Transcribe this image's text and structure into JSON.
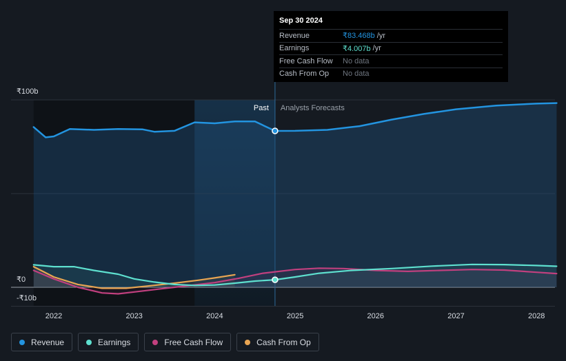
{
  "chart_data": {
    "type": "line",
    "y_tick_labels": [
      "₹100b",
      "₹0",
      "-₹10b"
    ],
    "y_ticks": [
      100,
      0,
      -10
    ],
    "ylim": [
      -10,
      100
    ],
    "x_range": [
      2021.5,
      2028.3
    ],
    "x_tick_labels": [
      "2022",
      "2023",
      "2024",
      "2025",
      "2026",
      "2027",
      "2028"
    ],
    "x_ticks": [
      2022,
      2023,
      2024,
      2025,
      2026,
      2027,
      2028
    ],
    "past_label": "Past",
    "forecast_label": "Analysts Forecasts",
    "divider_x": 2024.75,
    "highlight_start": 2023.75,
    "series": [
      {
        "name": "Revenue",
        "color": "#2394e0",
        "points": [
          [
            2021.75,
            85.5
          ],
          [
            2021.9,
            80
          ],
          [
            2022.0,
            80.5
          ],
          [
            2022.2,
            84.5
          ],
          [
            2022.5,
            84
          ],
          [
            2022.8,
            84.5
          ],
          [
            2023.1,
            84.3
          ],
          [
            2023.25,
            83
          ],
          [
            2023.5,
            83.5
          ],
          [
            2023.75,
            88
          ],
          [
            2024.0,
            87.5
          ],
          [
            2024.25,
            88.5
          ],
          [
            2024.5,
            88.5
          ],
          [
            2024.75,
            83.468
          ],
          [
            2025.0,
            83.5
          ],
          [
            2025.4,
            84
          ],
          [
            2025.8,
            86
          ],
          [
            2026.2,
            89.5
          ],
          [
            2026.6,
            92.5
          ],
          [
            2027.0,
            95
          ],
          [
            2027.5,
            97
          ],
          [
            2028.0,
            98
          ],
          [
            2028.25,
            98.3
          ]
        ]
      },
      {
        "name": "Earnings",
        "color": "#5ee0cf",
        "points": [
          [
            2021.75,
            12
          ],
          [
            2022.0,
            11
          ],
          [
            2022.25,
            11
          ],
          [
            2022.5,
            9
          ],
          [
            2022.8,
            7
          ],
          [
            2023.0,
            4.5
          ],
          [
            2023.25,
            2.8
          ],
          [
            2023.5,
            1.5
          ],
          [
            2023.75,
            1
          ],
          [
            2024.0,
            1.2
          ],
          [
            2024.25,
            2.2
          ],
          [
            2024.5,
            3.3
          ],
          [
            2024.75,
            4.007
          ],
          [
            2025.0,
            5.5
          ],
          [
            2025.3,
            7.5
          ],
          [
            2025.7,
            9
          ],
          [
            2026.2,
            10
          ],
          [
            2026.7,
            11.3
          ],
          [
            2027.2,
            12.2
          ],
          [
            2027.6,
            12.1
          ],
          [
            2028.0,
            11.6
          ],
          [
            2028.25,
            11.2
          ]
        ]
      },
      {
        "name": "Free Cash Flow",
        "color": "#c2407f",
        "points": [
          [
            2021.75,
            9
          ],
          [
            2022.0,
            4.5
          ],
          [
            2022.3,
            0
          ],
          [
            2022.6,
            -3
          ],
          [
            2022.8,
            -3.5
          ],
          [
            2023.0,
            -2.5
          ],
          [
            2023.3,
            -1
          ],
          [
            2023.6,
            0.5
          ],
          [
            2024.0,
            2.5
          ],
          [
            2024.3,
            4.8
          ],
          [
            2024.6,
            7.5
          ],
          [
            2025.0,
            9.5
          ],
          [
            2025.3,
            10.2
          ],
          [
            2025.6,
            10
          ],
          [
            2026.0,
            9
          ],
          [
            2026.4,
            8.5
          ],
          [
            2026.8,
            9
          ],
          [
            2027.2,
            9.5
          ],
          [
            2027.6,
            9.2
          ],
          [
            2028.0,
            8
          ],
          [
            2028.25,
            7.3
          ]
        ]
      },
      {
        "name": "Cash From Op",
        "color": "#e8a552",
        "points": [
          [
            2021.75,
            11
          ],
          [
            2022.0,
            5.5
          ],
          [
            2022.3,
            1.5
          ],
          [
            2022.6,
            -0.5
          ],
          [
            2022.9,
            -0.5
          ],
          [
            2023.2,
            0.8
          ],
          [
            2023.5,
            2.2
          ],
          [
            2023.8,
            3.8
          ],
          [
            2024.0,
            5
          ],
          [
            2024.25,
            6.7
          ]
        ]
      }
    ],
    "tooltip": {
      "date": "Sep 30 2024",
      "rows": [
        {
          "label": "Revenue",
          "value": "₹83.468b",
          "unit": "/yr",
          "color": "#2394e0"
        },
        {
          "label": "Earnings",
          "value": "₹4.007b",
          "unit": "/yr",
          "color": "#5ee0cf"
        },
        {
          "label": "Free Cash Flow",
          "value": "No data",
          "unit": "",
          "color": "#6f7680"
        },
        {
          "label": "Cash From Op",
          "value": "No data",
          "unit": "",
          "color": "#6f7680"
        }
      ]
    }
  }
}
